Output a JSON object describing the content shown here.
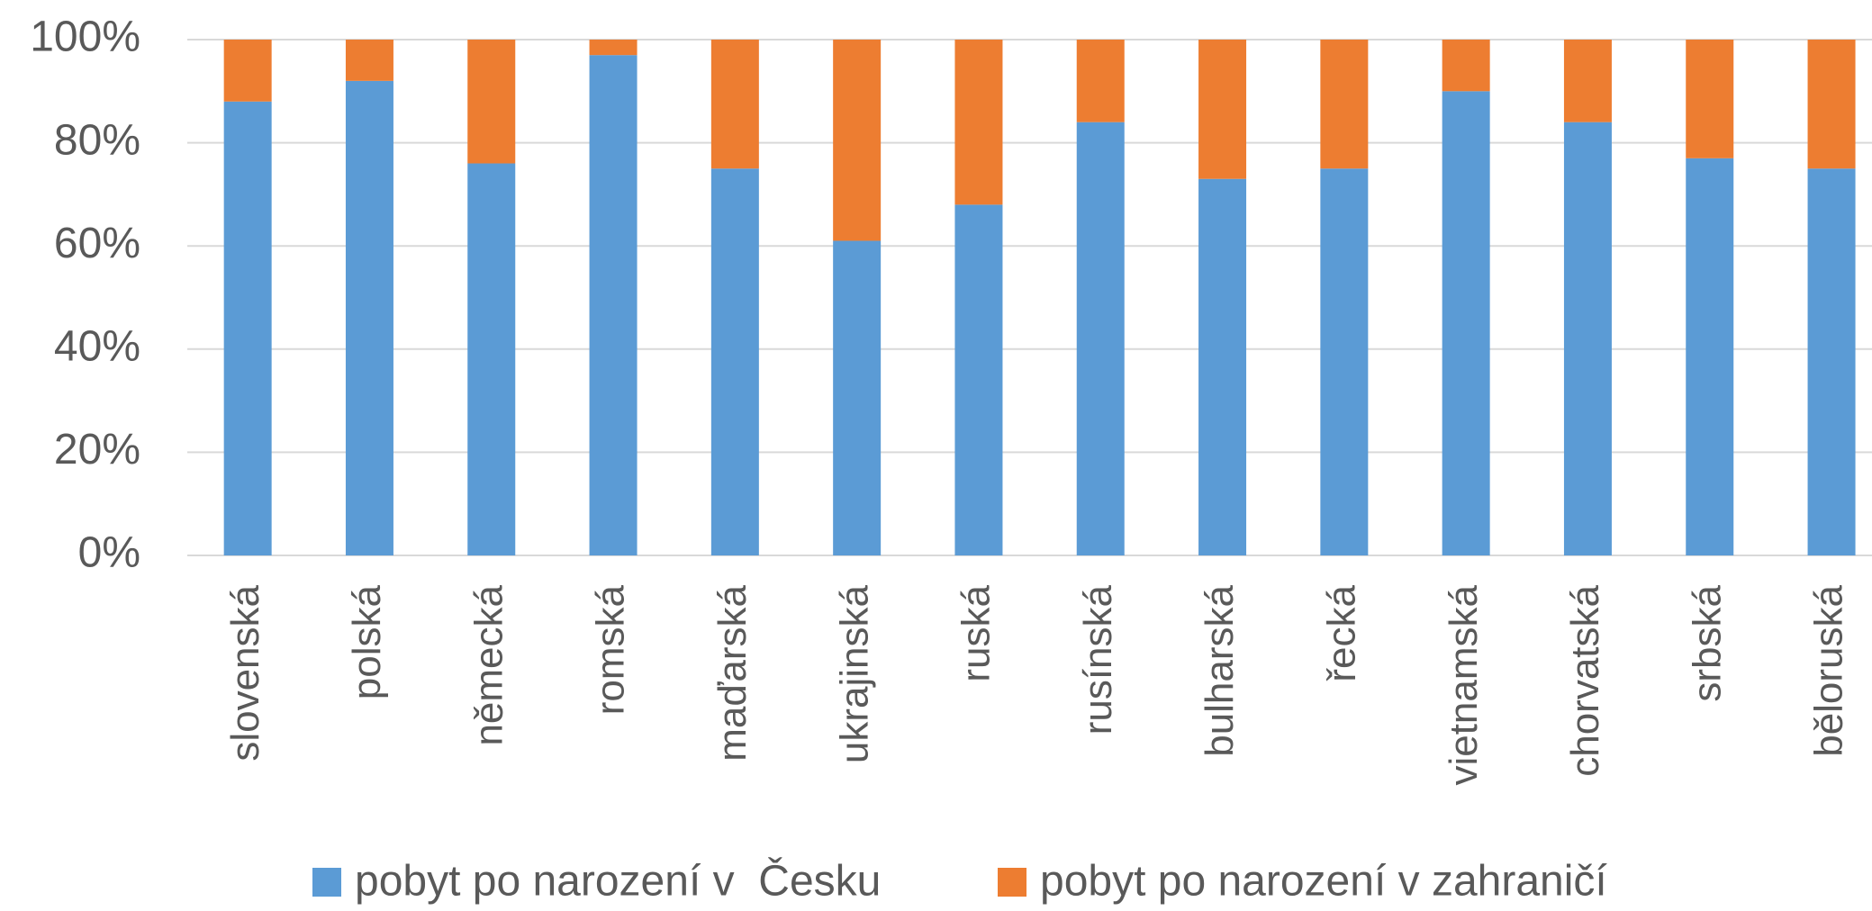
{
  "chart_data": {
    "type": "stacked_bar",
    "categories": [
      "slovenská",
      "polská",
      "německá",
      "romská",
      "maďarská",
      "ukrajinská",
      "ruská",
      "rusínská",
      "bulharská",
      "řecká",
      "vietnamská",
      "chorvatská",
      "srbská",
      "běloruská"
    ],
    "series": [
      {
        "name": "pobyt po narození v  Česku",
        "color": "#5b9bd5",
        "values": [
          88,
          92,
          76,
          97,
          75,
          61,
          68,
          84,
          73,
          75,
          90,
          84,
          77,
          75
        ]
      },
      {
        "name": "pobyt po narození v zahraničí",
        "color": "#ed7d31",
        "values": [
          12,
          8,
          24,
          3,
          25,
          39,
          32,
          16,
          27,
          25,
          10,
          16,
          23,
          25
        ]
      }
    ],
    "ylim": [
      0,
      100
    ],
    "yticks": [
      {
        "value": 0,
        "label": "0%"
      },
      {
        "value": 20,
        "label": "20%"
      },
      {
        "value": 40,
        "label": "40%"
      },
      {
        "value": 60,
        "label": "60%"
      },
      {
        "value": 80,
        "label": "80%"
      },
      {
        "value": 100,
        "label": "100%"
      }
    ],
    "grid": true,
    "legend": "bottom"
  }
}
